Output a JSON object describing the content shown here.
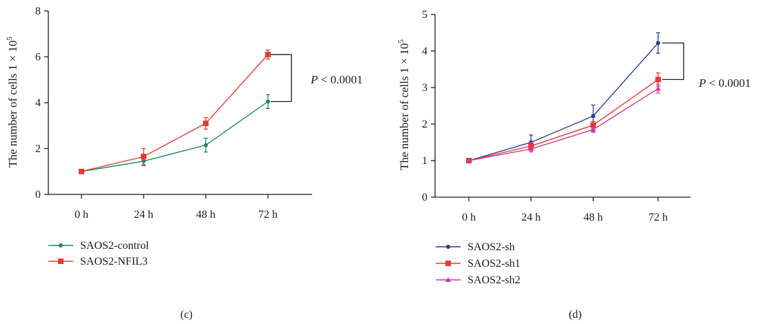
{
  "chart_data": [
    {
      "type": "line",
      "panel_label": "(c)",
      "ylabel": "The number of cells 1 × 10",
      "ylabel_sup": "5",
      "categories": [
        "0 h",
        "24 h",
        "48 h",
        "72 h"
      ],
      "ylim": [
        0,
        8
      ],
      "yticks": [
        0,
        2,
        4,
        6,
        8
      ],
      "grid": false,
      "legend_placement": "bottom-left",
      "series": [
        {
          "name": "SAOS2-control",
          "color": "#1a8a5a",
          "marker": "circle",
          "values": [
            1.0,
            1.45,
            2.15,
            4.05
          ],
          "errors": [
            0.05,
            0.2,
            0.3,
            0.3
          ]
        },
        {
          "name": "SAOS2-NFIL3",
          "color": "#e8392f",
          "marker": "square",
          "values": [
            1.0,
            1.65,
            3.1,
            6.1
          ],
          "errors": [
            0.05,
            0.35,
            0.25,
            0.2
          ]
        }
      ],
      "annotation": {
        "italic": "P",
        "text": " < 0.0001",
        "bracket_between": [
          "SAOS2-NFIL3",
          "SAOS2-control"
        ]
      }
    },
    {
      "type": "line",
      "panel_label": "(d)",
      "ylabel": "The number of cells 1 × 10",
      "ylabel_sup": "5",
      "categories": [
        "0 h",
        "24 h",
        "48 h",
        "72 h"
      ],
      "ylim": [
        0,
        5
      ],
      "yticks": [
        0,
        1,
        2,
        3,
        4,
        5
      ],
      "grid": false,
      "legend_placement": "bottom-left",
      "series": [
        {
          "name": "SAOS2-sh",
          "color": "#2b3a96",
          "marker": "circle",
          "values": [
            1.0,
            1.5,
            2.22,
            4.22
          ],
          "errors": [
            0.03,
            0.2,
            0.3,
            0.28
          ]
        },
        {
          "name": "SAOS2-sh1",
          "color": "#e8392f",
          "marker": "square",
          "values": [
            1.0,
            1.4,
            1.97,
            3.22
          ],
          "errors": [
            0.03,
            0.1,
            0.1,
            0.18
          ]
        },
        {
          "name": "SAOS2-sh2",
          "color": "#cc3a9a",
          "marker": "triangle",
          "values": [
            1.0,
            1.32,
            1.85,
            2.97
          ],
          "errors": [
            0.03,
            0.08,
            0.08,
            0.12
          ]
        }
      ],
      "annotation": {
        "italic": "P",
        "text": " < 0.0001",
        "bracket_between": [
          "SAOS2-sh",
          "SAOS2-sh1"
        ]
      }
    }
  ]
}
